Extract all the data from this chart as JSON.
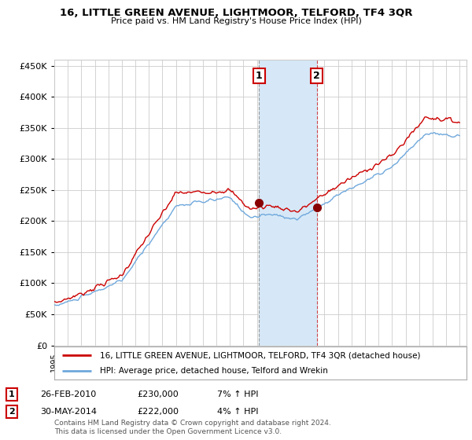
{
  "title": "16, LITTLE GREEN AVENUE, LIGHTMOOR, TELFORD, TF4 3QR",
  "subtitle": "Price paid vs. HM Land Registry's House Price Index (HPI)",
  "legend_line1": "16, LITTLE GREEN AVENUE, LIGHTMOOR, TELFORD, TF4 3QR (detached house)",
  "legend_line2": "HPI: Average price, detached house, Telford and Wrekin",
  "annotation1_label": "1",
  "annotation1_date": "26-FEB-2010",
  "annotation1_price": "£230,000",
  "annotation1_hpi": "7% ↑ HPI",
  "annotation2_label": "2",
  "annotation2_date": "30-MAY-2014",
  "annotation2_price": "£222,000",
  "annotation2_hpi": "4% ↑ HPI",
  "footnote1": "Contains HM Land Registry data © Crown copyright and database right 2024.",
  "footnote2": "This data is licensed under the Open Government Licence v3.0.",
  "hpi_color": "#6fa8dc",
  "price_color": "#cc0000",
  "marker_color": "#880000",
  "grid_color": "#cccccc",
  "background_color": "#ffffff",
  "shaded_region_color": "#d6e8f7",
  "annotation_box_color": "#cc0000",
  "ylim": [
    0,
    460000
  ],
  "yticks": [
    0,
    50000,
    100000,
    150000,
    200000,
    250000,
    300000,
    350000,
    400000,
    450000
  ],
  "x_start_year": 1995,
  "x_end_year": 2025,
  "transaction1_year": 2010.15,
  "transaction2_year": 2014.42,
  "sale1_value": 230000,
  "sale2_value": 222000
}
